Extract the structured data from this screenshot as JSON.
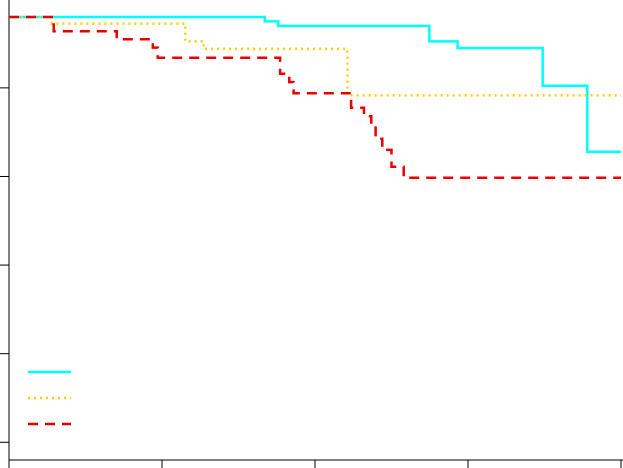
{
  "chart_data": {
    "type": "line",
    "step": true,
    "title": "",
    "xlabel": "",
    "ylabel": "",
    "xlim": [
      0,
      1
    ],
    "ylim": [
      0,
      1
    ],
    "x_ticks": [
      0,
      0.25,
      0.5,
      0.75,
      1
    ],
    "y_ticks": [
      0.04,
      0.24,
      0.44,
      0.64,
      0.84
    ],
    "grid": false,
    "legend": {
      "position": "bottom-left",
      "labels_visible": false
    },
    "series": [
      {
        "color": "#00ffff",
        "line_style": "solid",
        "points": [
          [
            0.0,
            1.0
          ],
          [
            0.418,
            1.0
          ],
          [
            0.418,
            0.99
          ],
          [
            0.44,
            0.99
          ],
          [
            0.44,
            0.98
          ],
          [
            0.687,
            0.98
          ],
          [
            0.687,
            0.945
          ],
          [
            0.733,
            0.945
          ],
          [
            0.733,
            0.93
          ],
          [
            0.872,
            0.93
          ],
          [
            0.872,
            0.845
          ],
          [
            0.945,
            0.845
          ],
          [
            0.945,
            0.696
          ],
          [
            1.0,
            0.696
          ]
        ]
      },
      {
        "color": "#ffcc00",
        "line_style": "dotted",
        "points": [
          [
            0.0,
            1.0
          ],
          [
            0.07,
            1.0
          ],
          [
            0.07,
            0.985
          ],
          [
            0.288,
            0.985
          ],
          [
            0.288,
            0.945
          ],
          [
            0.318,
            0.945
          ],
          [
            0.318,
            0.928
          ],
          [
            0.553,
            0.928
          ],
          [
            0.553,
            0.823
          ],
          [
            1.0,
            0.823
          ]
        ]
      },
      {
        "color": "#e60000",
        "line_style": "dashed",
        "points": [
          [
            0.0,
            1.0
          ],
          [
            0.073,
            1.0
          ],
          [
            0.073,
            0.968
          ],
          [
            0.176,
            0.968
          ],
          [
            0.176,
            0.95
          ],
          [
            0.235,
            0.95
          ],
          [
            0.235,
            0.931
          ],
          [
            0.243,
            0.931
          ],
          [
            0.243,
            0.908
          ],
          [
            0.443,
            0.908
          ],
          [
            0.443,
            0.872
          ],
          [
            0.458,
            0.872
          ],
          [
            0.458,
            0.853
          ],
          [
            0.465,
            0.853
          ],
          [
            0.465,
            0.828
          ],
          [
            0.559,
            0.828
          ],
          [
            0.559,
            0.795
          ],
          [
            0.58,
            0.795
          ],
          [
            0.58,
            0.776
          ],
          [
            0.592,
            0.776
          ],
          [
            0.592,
            0.755
          ],
          [
            0.599,
            0.755
          ],
          [
            0.599,
            0.725
          ],
          [
            0.61,
            0.725
          ],
          [
            0.61,
            0.7
          ],
          [
            0.625,
            0.7
          ],
          [
            0.625,
            0.662
          ],
          [
            0.645,
            0.662
          ],
          [
            0.645,
            0.637
          ],
          [
            1.0,
            0.637
          ]
        ]
      }
    ],
    "colors": {
      "axis": "#000000",
      "background": "#ffffff"
    }
  }
}
